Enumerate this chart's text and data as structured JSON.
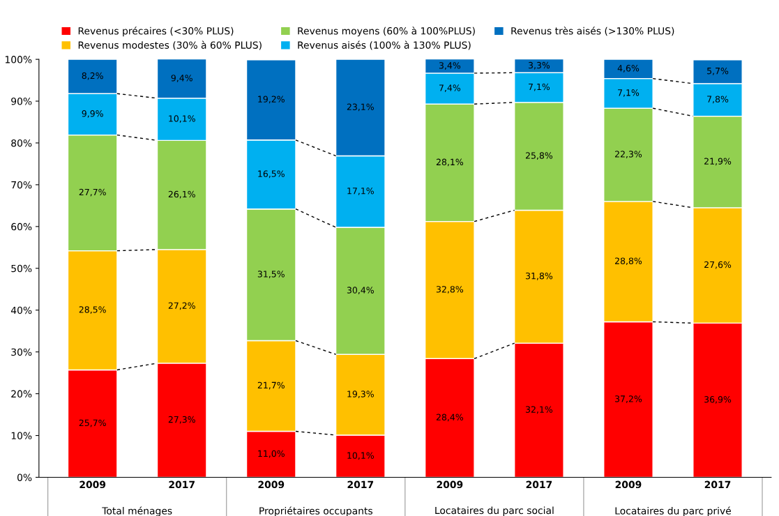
{
  "chart_data": {
    "type": "bar",
    "stacked": true,
    "categories": [
      "2009",
      "2017",
      "2009",
      "2017",
      "2009",
      "2017",
      "2009",
      "2017"
    ],
    "annotations": [
      "Total ménages",
      "Propriétaires occupants",
      "Locataires du parc social",
      "Locataires du parc privé"
    ],
    "series": [
      {
        "name": "Revenus précaires (<30% PLUS)",
        "color": "#ff0000",
        "values": [
          25.7,
          27.3,
          11.0,
          10.1,
          28.4,
          32.1,
          37.2,
          36.9
        ],
        "value_labels": [
          "25,7%",
          "27,3%",
          "11,0%",
          "10,1%",
          "28,4%",
          "32,1%",
          "37,2%",
          "36,9%"
        ]
      },
      {
        "name": "Revenus modestes (30% à 60% PLUS)",
        "color": "#ffc000",
        "values": [
          28.5,
          27.2,
          21.7,
          19.3,
          32.8,
          31.8,
          28.8,
          27.6
        ],
        "value_labels": [
          "28,5%",
          "27,2%",
          "21,7%",
          "19,3%",
          "32,8%",
          "31,8%",
          "28,8%",
          "27,6%"
        ]
      },
      {
        "name": "Revenus moyens (60% à 100%PLUS)",
        "color": "#92d050",
        "values": [
          27.7,
          26.1,
          31.5,
          30.4,
          28.1,
          25.8,
          22.3,
          21.9
        ],
        "value_labels": [
          "27,7%",
          "26,1%",
          "31,5%",
          "30,4%",
          "28,1%",
          "25,8%",
          "22,3%",
          "21,9%"
        ]
      },
      {
        "name": "Revenus aisés (100% à 130% PLUS)",
        "color": "#00b0f0",
        "values": [
          9.9,
          10.1,
          16.5,
          17.1,
          7.4,
          7.1,
          7.1,
          7.8
        ],
        "value_labels": [
          "9,9%",
          "10,1%",
          "16,5%",
          "17,1%",
          "7,4%",
          "7,1%",
          "7,1%",
          "7,8%"
        ]
      },
      {
        "name": "Revenus très aisés (>130% PLUS)",
        "color": "#0070c0",
        "values": [
          8.2,
          9.4,
          19.2,
          23.1,
          3.4,
          3.3,
          4.6,
          5.7
        ],
        "value_labels": [
          "8,2%",
          "9,4%",
          "19,2%",
          "23,1%",
          "3,4%",
          "3,3%",
          "4,6%",
          "5,7%"
        ]
      }
    ],
    "ylim": [
      0,
      100
    ],
    "yticks": [
      {
        "value": 0,
        "label": "0%"
      },
      {
        "value": 10,
        "label": "10%"
      },
      {
        "value": 20,
        "label": "20%"
      },
      {
        "value": 30,
        "label": "30%"
      },
      {
        "value": 40,
        "label": "40%"
      },
      {
        "value": 50,
        "label": "50%"
      },
      {
        "value": 60,
        "label": "60%"
      },
      {
        "value": 70,
        "label": "70%"
      },
      {
        "value": 80,
        "label": "80%"
      },
      {
        "value": 90,
        "label": "90%"
      },
      {
        "value": 100,
        "label": "100%"
      }
    ],
    "legend": "top"
  }
}
